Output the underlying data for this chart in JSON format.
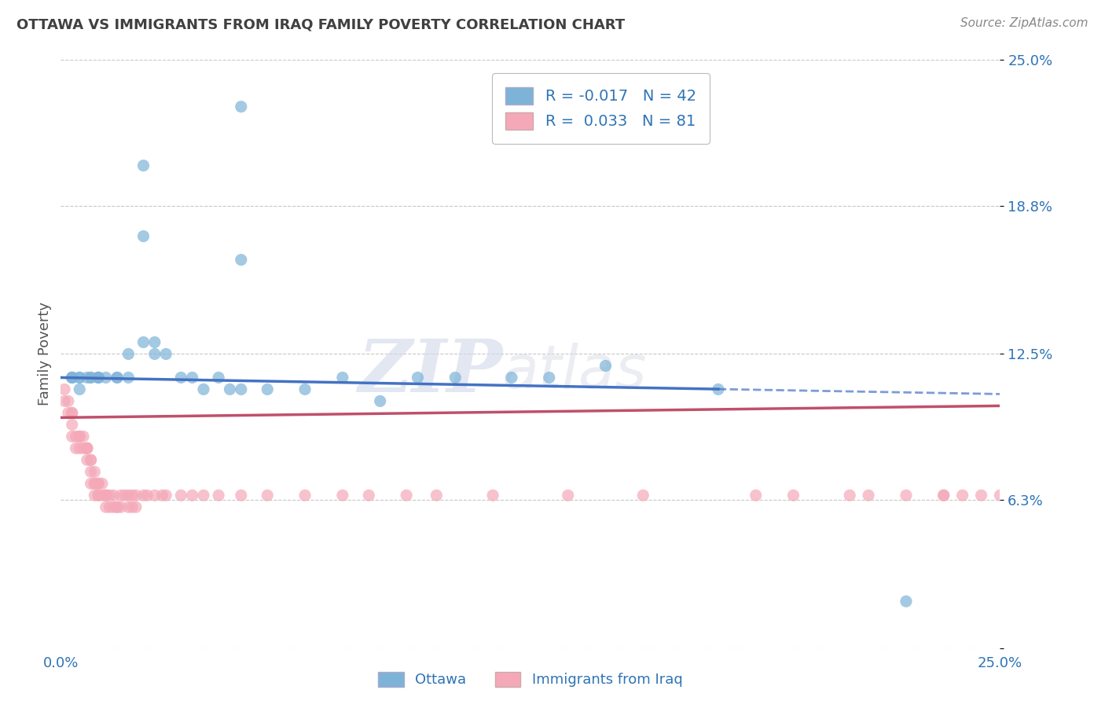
{
  "title": "OTTAWA VS IMMIGRANTS FROM IRAQ FAMILY POVERTY CORRELATION CHART",
  "source": "Source: ZipAtlas.com",
  "ylabel": "Family Poverty",
  "legend_label1": "Ottawa",
  "legend_label2": "Immigrants from Iraq",
  "r1": -0.017,
  "n1": 42,
  "r2": 0.033,
  "n2": 81,
  "color_ottawa": "#7eb3d8",
  "color_iraq": "#f4a8b8",
  "trendline_color_ottawa": "#4472c4",
  "trendline_color_iraq": "#c0506a",
  "background_color": "#ffffff",
  "grid_color": "#c8c8c8",
  "xmin": 0.0,
  "xmax": 0.25,
  "ymin": 0.0,
  "ymax": 0.25,
  "yticks": [
    0.0,
    0.063,
    0.125,
    0.188,
    0.25
  ],
  "ytick_labels": [
    "",
    "6.3%",
    "12.5%",
    "18.8%",
    "25.0%"
  ],
  "xtick_labels": [
    "0.0%",
    "25.0%"
  ],
  "title_color": "#404040",
  "axis_label_color": "#2e74b5",
  "watermark_zip": "ZIP",
  "watermark_atlas": "atlas",
  "ottawa_scatter_x": [
    0.022,
    0.022,
    0.048,
    0.048,
    0.003,
    0.003,
    0.003,
    0.005,
    0.005,
    0.005,
    0.007,
    0.008,
    0.008,
    0.01,
    0.01,
    0.01,
    0.012,
    0.015,
    0.015,
    0.018,
    0.018,
    0.022,
    0.025,
    0.025,
    0.028,
    0.032,
    0.035,
    0.038,
    0.042,
    0.045,
    0.048,
    0.055,
    0.065,
    0.075,
    0.085,
    0.095,
    0.105,
    0.12,
    0.13,
    0.145,
    0.175,
    0.225
  ],
  "ottawa_scatter_y": [
    0.205,
    0.175,
    0.23,
    0.165,
    0.115,
    0.115,
    0.115,
    0.115,
    0.115,
    0.11,
    0.115,
    0.115,
    0.115,
    0.115,
    0.115,
    0.115,
    0.115,
    0.115,
    0.115,
    0.115,
    0.125,
    0.13,
    0.125,
    0.13,
    0.125,
    0.115,
    0.115,
    0.11,
    0.115,
    0.11,
    0.11,
    0.11,
    0.11,
    0.115,
    0.105,
    0.115,
    0.115,
    0.115,
    0.115,
    0.12,
    0.11,
    0.02
  ],
  "iraq_scatter_x": [
    0.001,
    0.001,
    0.002,
    0.002,
    0.003,
    0.003,
    0.003,
    0.003,
    0.004,
    0.004,
    0.005,
    0.005,
    0.005,
    0.006,
    0.006,
    0.007,
    0.007,
    0.007,
    0.007,
    0.008,
    0.008,
    0.008,
    0.008,
    0.009,
    0.009,
    0.009,
    0.009,
    0.01,
    0.01,
    0.01,
    0.01,
    0.011,
    0.011,
    0.012,
    0.012,
    0.012,
    0.012,
    0.013,
    0.013,
    0.014,
    0.014,
    0.015,
    0.015,
    0.016,
    0.016,
    0.017,
    0.018,
    0.018,
    0.019,
    0.019,
    0.02,
    0.02,
    0.022,
    0.023,
    0.025,
    0.027,
    0.028,
    0.032,
    0.035,
    0.038,
    0.042,
    0.048,
    0.055,
    0.065,
    0.075,
    0.082,
    0.092,
    0.1,
    0.115,
    0.135,
    0.155,
    0.185,
    0.195,
    0.21,
    0.215,
    0.225,
    0.235,
    0.235,
    0.24,
    0.245,
    0.25
  ],
  "iraq_scatter_y": [
    0.11,
    0.105,
    0.105,
    0.1,
    0.1,
    0.1,
    0.095,
    0.09,
    0.09,
    0.085,
    0.09,
    0.09,
    0.085,
    0.09,
    0.085,
    0.085,
    0.085,
    0.085,
    0.08,
    0.08,
    0.08,
    0.075,
    0.07,
    0.075,
    0.07,
    0.07,
    0.065,
    0.07,
    0.07,
    0.065,
    0.065,
    0.07,
    0.065,
    0.065,
    0.065,
    0.065,
    0.06,
    0.065,
    0.06,
    0.065,
    0.06,
    0.06,
    0.06,
    0.065,
    0.06,
    0.065,
    0.065,
    0.06,
    0.065,
    0.06,
    0.065,
    0.06,
    0.065,
    0.065,
    0.065,
    0.065,
    0.065,
    0.065,
    0.065,
    0.065,
    0.065,
    0.065,
    0.065,
    0.065,
    0.065,
    0.065,
    0.065,
    0.065,
    0.065,
    0.065,
    0.065,
    0.065,
    0.065,
    0.065,
    0.065,
    0.065,
    0.065,
    0.065,
    0.065,
    0.065,
    0.065
  ],
  "trendline_ottawa_x0": 0.0,
  "trendline_ottawa_x1": 0.25,
  "trendline_ottawa_y0": 0.115,
  "trendline_ottawa_y1": 0.108,
  "trendline_iraq_x0": 0.0,
  "trendline_iraq_x1": 0.25,
  "trendline_iraq_y0": 0.098,
  "trendline_iraq_y1": 0.103
}
